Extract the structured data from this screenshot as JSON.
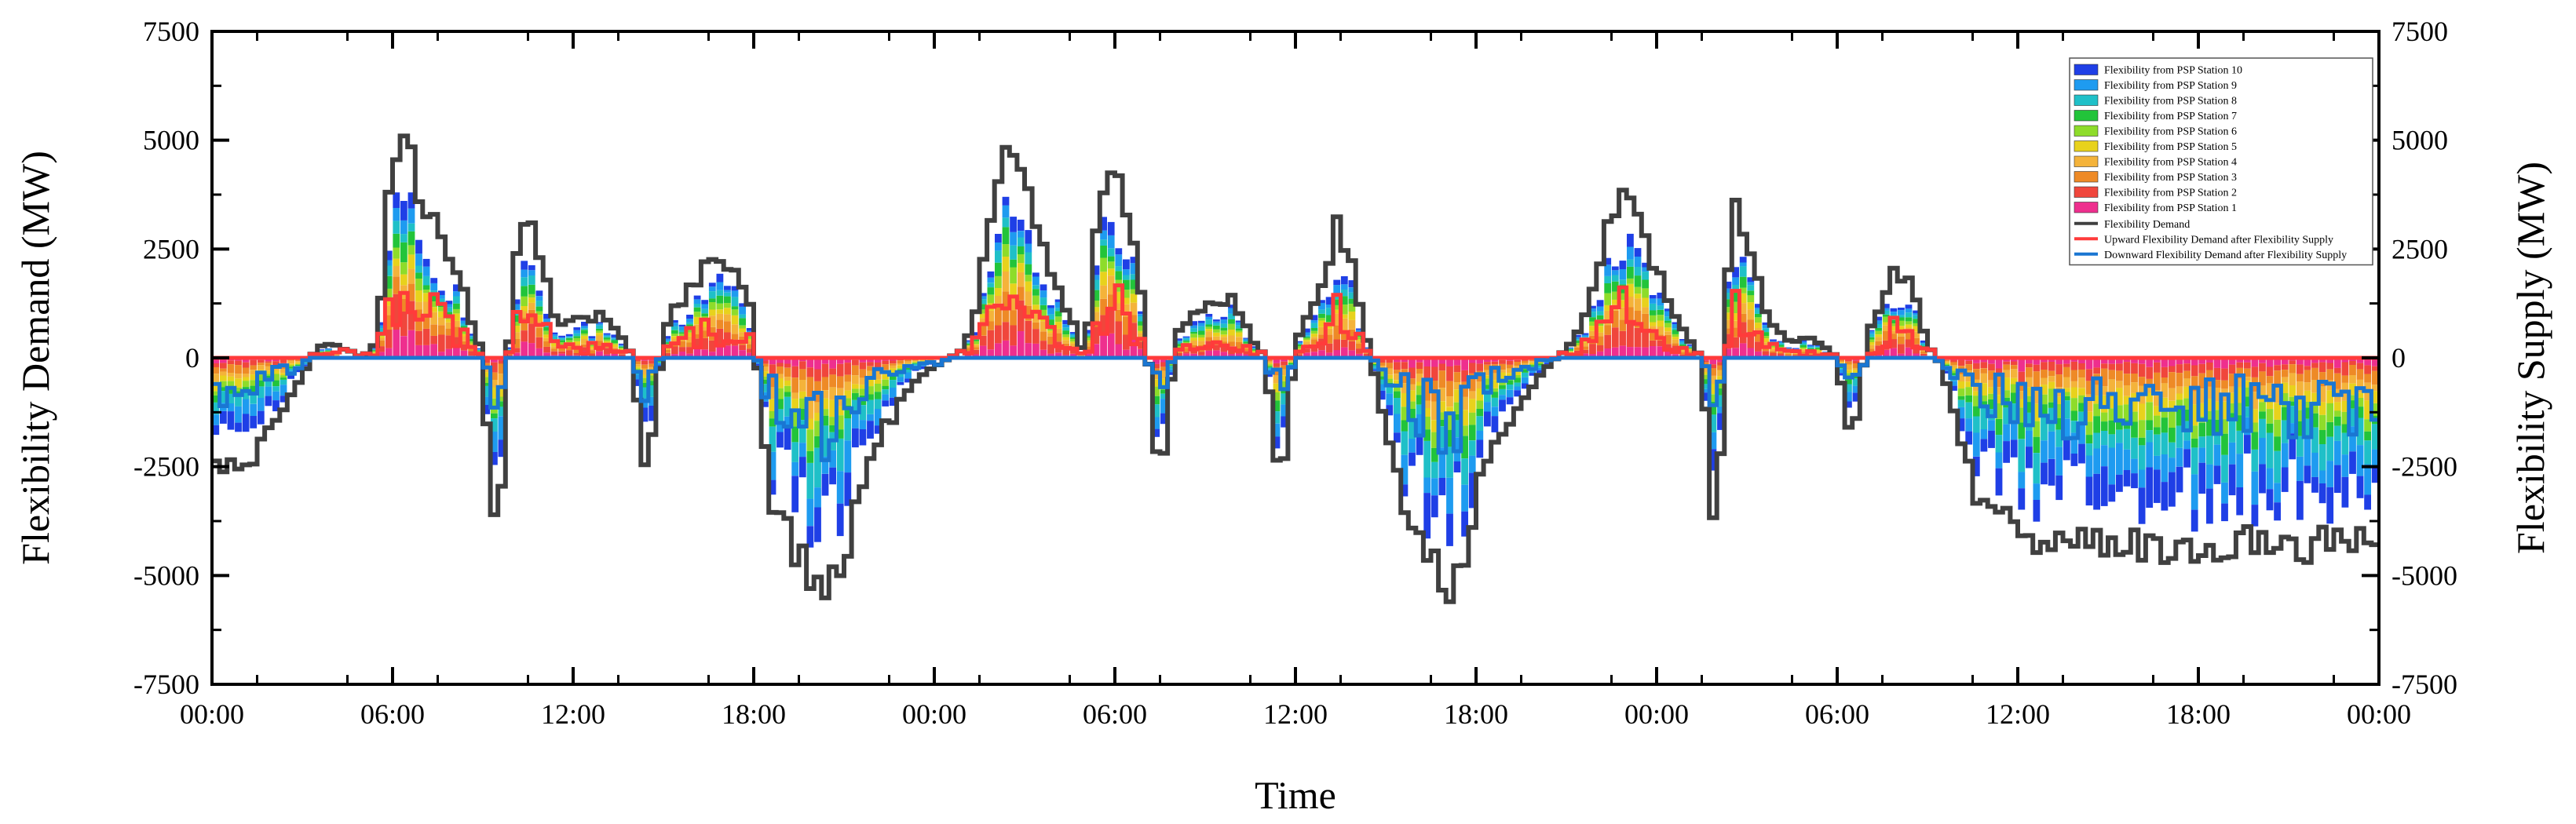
{
  "chart_data": {
    "type": "bar",
    "stacked": true,
    "xlabel": "Time",
    "ylabel_left": "Flexibility Demand (MW)",
    "ylabel_right": "Flexibility Supply (MW)",
    "ylim": [
      -7500,
      7500
    ],
    "yticks": [
      -7500,
      -5000,
      -2500,
      0,
      2500,
      5000,
      7500
    ],
    "xlim_hours": [
      0,
      144
    ],
    "xticks_hours": [
      0,
      12,
      24,
      36,
      48,
      60,
      72,
      84,
      96,
      108,
      120,
      132,
      144
    ],
    "xtick_labels": [
      "00:00",
      "06:00",
      "12:00",
      "18:00",
      "00:00",
      "06:00",
      "12:00",
      "18:00",
      "00:00",
      "06:00",
      "12:00",
      "18:00",
      "00:00"
    ],
    "legend_position": "top-right",
    "stations": [
      {
        "name": "Flexibility from PSP Station 10",
        "color": "#1f3fe6"
      },
      {
        "name": "Flexibility from PSP Station 9",
        "color": "#1e9bf0"
      },
      {
        "name": "Flexibility from PSP Station 8",
        "color": "#1fc0c8"
      },
      {
        "name": "Flexibility from PSP Station 7",
        "color": "#22c43a"
      },
      {
        "name": "Flexibility from PSP Station 6",
        "color": "#8edc2a"
      },
      {
        "name": "Flexibility from PSP Station 5",
        "color": "#e8d21c"
      },
      {
        "name": "Flexibility from PSP Station 4",
        "color": "#f4b33a"
      },
      {
        "name": "Flexibility from PSP Station 3",
        "color": "#ee8a26"
      },
      {
        "name": "Flexibility from PSP Station 2",
        "color": "#f0463c"
      },
      {
        "name": "Flexibility from PSP Station 1",
        "color": "#ee2f8e"
      }
    ],
    "lines": [
      {
        "name": "Flexibility Demand",
        "color": "#404040"
      },
      {
        "name": "Upward Flexibility Demand after Flexibility Supply",
        "color": "#ff3b3b"
      },
      {
        "name": "Downward Flexibility Demand after Flexibility Supply",
        "color": "#1a76d2"
      }
    ],
    "demand_profile": [
      [
        0,
        -2300
      ],
      [
        1,
        -2600
      ],
      [
        2,
        -2500
      ],
      [
        3,
        -2100
      ],
      [
        4,
        -1600
      ],
      [
        5,
        -1000
      ],
      [
        6,
        -400
      ],
      [
        7,
        250
      ],
      [
        8,
        300
      ],
      [
        9,
        200
      ],
      [
        10,
        0
      ],
      [
        11,
        400
      ],
      [
        12,
        4700
      ],
      [
        13,
        4600
      ],
      [
        14,
        3600
      ],
      [
        15,
        2800
      ],
      [
        16,
        2200
      ],
      [
        17,
        1200
      ],
      [
        18,
        0
      ],
      [
        18.5,
        -2900
      ],
      [
        19,
        -4400
      ],
      [
        20,
        2000
      ],
      [
        21,
        3600
      ],
      [
        22,
        2100
      ],
      [
        23,
        700
      ],
      [
        24,
        900
      ],
      [
        25,
        900
      ],
      [
        26,
        1000
      ],
      [
        27,
        600
      ],
      [
        28,
        0
      ],
      [
        28.5,
        -1900
      ],
      [
        29,
        -2800
      ],
      [
        30,
        600
      ],
      [
        31,
        1300
      ],
      [
        32,
        1600
      ],
      [
        33,
        2600
      ],
      [
        34,
        2400
      ],
      [
        35,
        1700
      ],
      [
        36,
        1000
      ],
      [
        36.5,
        -1500
      ],
      [
        37,
        -3000
      ],
      [
        38,
        -3900
      ],
      [
        39,
        -4600
      ],
      [
        40,
        -5100
      ],
      [
        41,
        -5500
      ],
      [
        42,
        -4700
      ],
      [
        43,
        -3300
      ],
      [
        44,
        -2000
      ],
      [
        45,
        -1500
      ],
      [
        46,
        -900
      ],
      [
        47,
        -500
      ],
      [
        48,
        -200
      ],
      [
        49,
        0
      ],
      [
        50,
        200
      ],
      [
        51,
        1500
      ],
      [
        52,
        3800
      ],
      [
        53,
        5400
      ],
      [
        54,
        4300
      ],
      [
        55,
        2600
      ],
      [
        56,
        1800
      ],
      [
        57,
        1000
      ],
      [
        58,
        0
      ],
      [
        59,
        3500
      ],
      [
        60,
        4300
      ],
      [
        61,
        2800
      ],
      [
        62,
        1200
      ],
      [
        62.5,
        -1500
      ],
      [
        63,
        -3300
      ],
      [
        64,
        500
      ],
      [
        65,
        900
      ],
      [
        66,
        1300
      ],
      [
        67,
        1400
      ],
      [
        68,
        1300
      ],
      [
        69,
        500
      ],
      [
        70,
        0
      ],
      [
        70.5,
        -1700
      ],
      [
        71,
        -3000
      ],
      [
        72,
        400
      ],
      [
        73,
        1200
      ],
      [
        74,
        2000
      ],
      [
        75,
        3200
      ],
      [
        76,
        1600
      ],
      [
        77,
        0
      ],
      [
        78,
        -1500
      ],
      [
        79,
        -3000
      ],
      [
        80,
        -4200
      ],
      [
        81,
        -4900
      ],
      [
        82,
        -5400
      ],
      [
        83,
        -5100
      ],
      [
        84,
        -3300
      ],
      [
        85,
        -2200
      ],
      [
        86,
        -1600
      ],
      [
        87,
        -1000
      ],
      [
        88,
        -500
      ],
      [
        89,
        -100
      ],
      [
        90,
        200
      ],
      [
        91,
        700
      ],
      [
        92,
        1900
      ],
      [
        93,
        3400
      ],
      [
        94,
        3900
      ],
      [
        95,
        3000
      ],
      [
        96,
        2100
      ],
      [
        97,
        1200
      ],
      [
        98,
        500
      ],
      [
        99,
        0
      ],
      [
        99.5,
        -2500
      ],
      [
        100,
        -4100
      ],
      [
        101,
        3800
      ],
      [
        102,
        2900
      ],
      [
        103,
        1300
      ],
      [
        104,
        600
      ],
      [
        105,
        400
      ],
      [
        106,
        500
      ],
      [
        107,
        300
      ],
      [
        108,
        0
      ],
      [
        108.5,
        -1100
      ],
      [
        109,
        -2100
      ],
      [
        110,
        500
      ],
      [
        111,
        1300
      ],
      [
        112,
        2100
      ],
      [
        113,
        1600
      ],
      [
        114,
        300
      ],
      [
        115,
        -200
      ],
      [
        116,
        -1700
      ],
      [
        117,
        -2900
      ],
      [
        118,
        -3500
      ],
      [
        119,
        -3800
      ],
      [
        120,
        -4200
      ],
      [
        121,
        -4300
      ]
    ]
  }
}
